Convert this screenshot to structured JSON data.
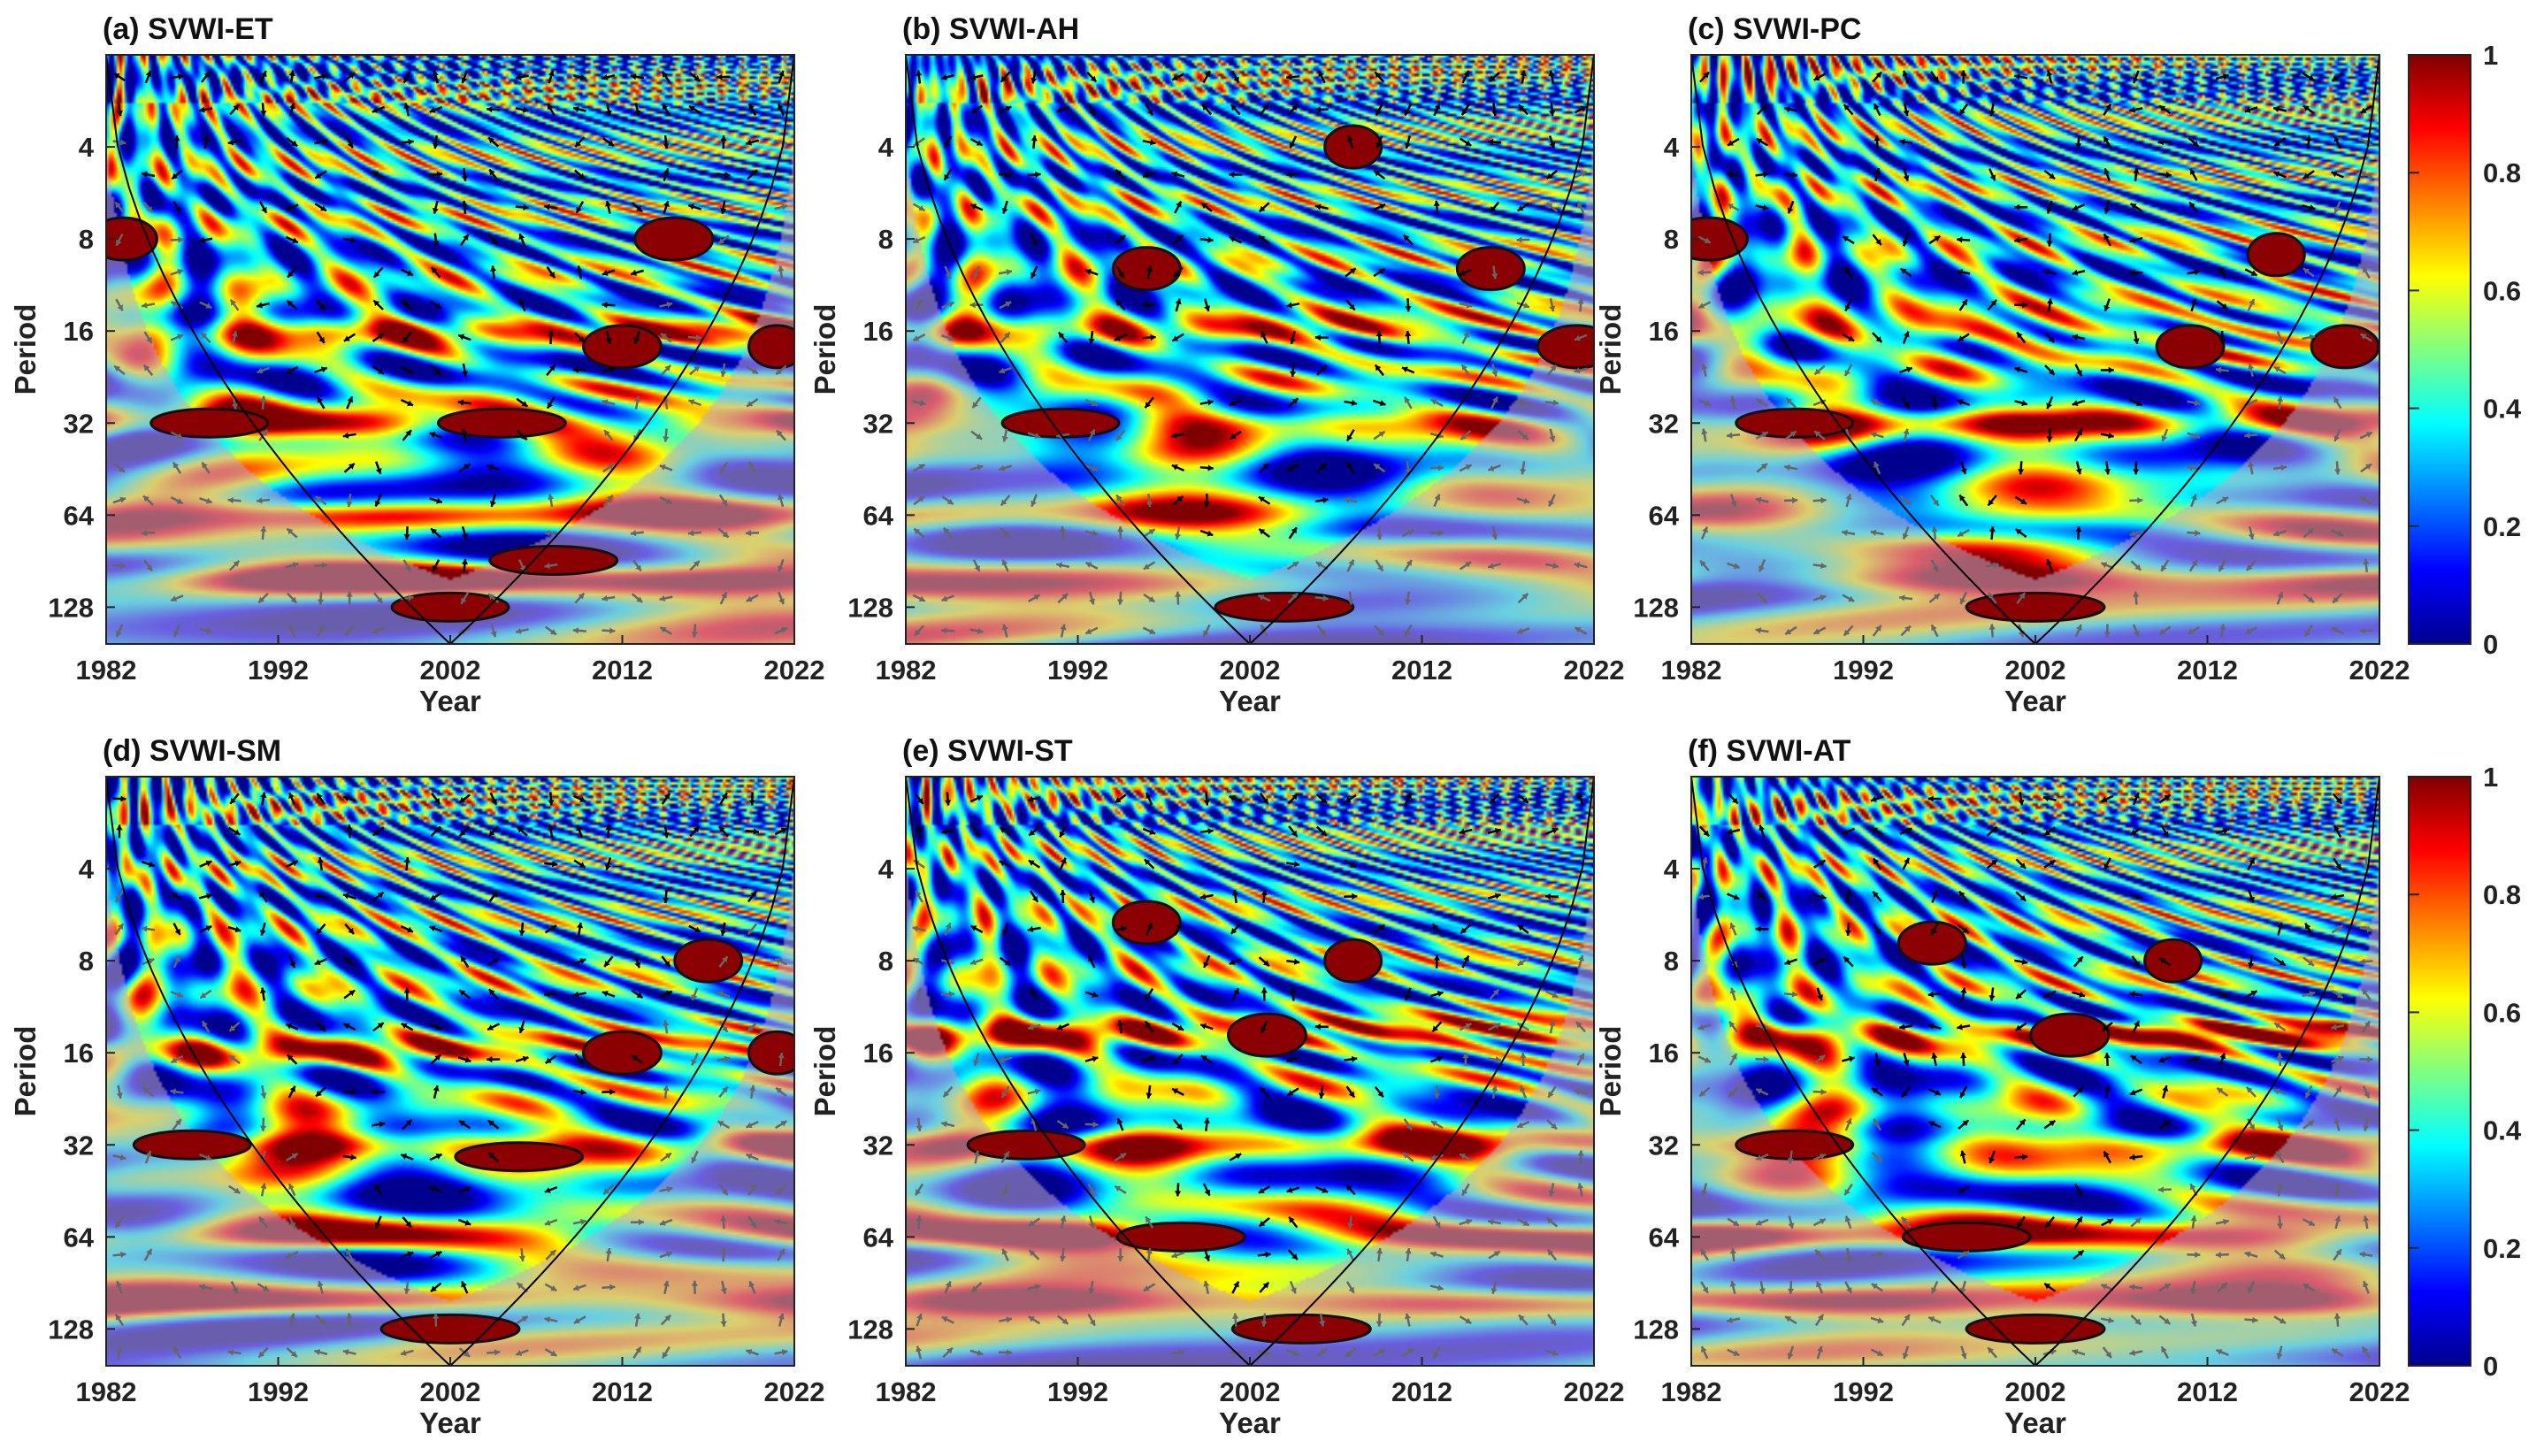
{
  "figure": {
    "colorbar_stops": [
      "#00008f",
      "#0000ff",
      "#0080ff",
      "#00ffff",
      "#80ff80",
      "#ffff00",
      "#ff8000",
      "#ff0000",
      "#800000"
    ]
  },
  "chart_data": [
    {
      "type": "heatmap",
      "title": "(a) SVWI-ET",
      "xlabel": "Year",
      "ylabel": "Period",
      "xticks": [
        "1982",
        "1992",
        "2002",
        "2012",
        "2022"
      ],
      "yticks": [
        "4",
        "8",
        "16",
        "32",
        "64",
        "128"
      ],
      "xlim": [
        1982,
        2022
      ],
      "ylim_log2": [
        1,
        7.4
      ],
      "colorbar": {
        "range": [
          0,
          1
        ],
        "ticks": [
          "0",
          "0.2",
          "0.4",
          "0.6",
          "0.8",
          "1"
        ]
      },
      "significant_regions": [
        {
          "year": 1988,
          "period": 32
        },
        {
          "year": 2005,
          "period": 32
        },
        {
          "year": 2012,
          "period": 18
        },
        {
          "year": 2021,
          "period": 18
        },
        {
          "year": 1983,
          "period": 8
        },
        {
          "year": 2015,
          "period": 8
        },
        {
          "year": 2002,
          "period": 128
        },
        {
          "year": 2008,
          "period": 90
        }
      ],
      "high_power_bands": [
        {
          "period": 32,
          "strength": 0.8
        },
        {
          "period": 64,
          "strength": 0.7
        },
        {
          "period": 105,
          "strength": 0.9
        },
        {
          "period": 16,
          "strength": 0.5
        }
      ]
    },
    {
      "type": "heatmap",
      "title": "(b) SVWI-AH",
      "xlabel": "Year",
      "ylabel": "Period",
      "xticks": [
        "1982",
        "1992",
        "2002",
        "2012",
        "2022"
      ],
      "yticks": [
        "4",
        "8",
        "16",
        "32",
        "64",
        "128"
      ],
      "xlim": [
        1982,
        2022
      ],
      "ylim_log2": [
        1,
        7.4
      ],
      "colorbar": {
        "range": [
          0,
          1
        ],
        "ticks": [
          "0",
          "0.2",
          "0.4",
          "0.6",
          "0.8",
          "1"
        ]
      },
      "significant_regions": [
        {
          "year": 1991,
          "period": 32
        },
        {
          "year": 1996,
          "period": 10
        },
        {
          "year": 2021,
          "period": 18
        },
        {
          "year": 2008,
          "period": 4
        },
        {
          "year": 2016,
          "period": 10
        },
        {
          "year": 2004,
          "period": 128
        }
      ],
      "high_power_bands": [
        {
          "period": 32,
          "strength": 0.5
        },
        {
          "period": 64,
          "strength": 0.4
        },
        {
          "period": 110,
          "strength": 0.6
        },
        {
          "period": 16,
          "strength": 0.4
        }
      ]
    },
    {
      "type": "heatmap",
      "title": "(c) SVWI-PC",
      "xlabel": "Year",
      "ylabel": "Period",
      "xticks": [
        "1982",
        "1992",
        "2002",
        "2012",
        "2022"
      ],
      "yticks": [
        "4",
        "8",
        "16",
        "32",
        "64",
        "128"
      ],
      "xlim": [
        1982,
        2022
      ],
      "ylim_log2": [
        1,
        7.4
      ],
      "colorbar": {
        "range": [
          0,
          1
        ],
        "ticks": [
          "0",
          "0.2",
          "0.4",
          "0.6",
          "0.8",
          "1"
        ]
      },
      "significant_regions": [
        {
          "year": 1988,
          "period": 32
        },
        {
          "year": 2011,
          "period": 18
        },
        {
          "year": 1983,
          "period": 8
        },
        {
          "year": 2016,
          "period": 9
        },
        {
          "year": 2020,
          "period": 18
        },
        {
          "year": 2002,
          "period": 128
        }
      ],
      "high_power_bands": [
        {
          "period": 32,
          "strength": 0.6
        },
        {
          "period": 64,
          "strength": 0.5
        },
        {
          "period": 105,
          "strength": 0.85
        },
        {
          "period": 16,
          "strength": 0.45
        }
      ]
    },
    {
      "type": "heatmap",
      "title": "(d) SVWI-SM",
      "xlabel": "Year",
      "ylabel": "Period",
      "xticks": [
        "1982",
        "1992",
        "2002",
        "2012",
        "2022"
      ],
      "yticks": [
        "4",
        "8",
        "16",
        "32",
        "64",
        "128"
      ],
      "xlim": [
        1982,
        2022
      ],
      "ylim_log2": [
        1,
        7.4
      ],
      "colorbar": {
        "range": [
          0,
          1
        ],
        "ticks": [
          "0",
          "0.2",
          "0.4",
          "0.6",
          "0.8",
          "1"
        ]
      },
      "significant_regions": [
        {
          "year": 1987,
          "period": 32
        },
        {
          "year": 2006,
          "period": 35
        },
        {
          "year": 2012,
          "period": 16
        },
        {
          "year": 2021,
          "period": 16
        },
        {
          "year": 2017,
          "period": 8
        },
        {
          "year": 2002,
          "period": 128
        }
      ],
      "high_power_bands": [
        {
          "period": 32,
          "strength": 0.7
        },
        {
          "period": 64,
          "strength": 0.6
        },
        {
          "period": 105,
          "strength": 0.9
        },
        {
          "period": 16,
          "strength": 0.5
        }
      ]
    },
    {
      "type": "heatmap",
      "title": "(e) SVWI-ST",
      "xlabel": "Year",
      "ylabel": "Period",
      "xticks": [
        "1982",
        "1992",
        "2002",
        "2012",
        "2022"
      ],
      "yticks": [
        "4",
        "8",
        "16",
        "32",
        "64",
        "128"
      ],
      "xlim": [
        1982,
        2022
      ],
      "ylim_log2": [
        1,
        7.4
      ],
      "colorbar": {
        "range": [
          0,
          1
        ],
        "ticks": [
          "0",
          "0.2",
          "0.4",
          "0.6",
          "0.8",
          "1"
        ]
      },
      "significant_regions": [
        {
          "year": 1989,
          "period": 32
        },
        {
          "year": 1998,
          "period": 64
        },
        {
          "year": 2003,
          "period": 14
        },
        {
          "year": 2008,
          "period": 8
        },
        {
          "year": 1996,
          "period": 6
        },
        {
          "year": 2005,
          "period": 128
        }
      ],
      "high_power_bands": [
        {
          "period": 32,
          "strength": 0.6
        },
        {
          "period": 64,
          "strength": 0.85
        },
        {
          "period": 105,
          "strength": 0.9
        },
        {
          "period": 14,
          "strength": 0.6
        }
      ]
    },
    {
      "type": "heatmap",
      "title": "(f) SVWI-AT",
      "xlabel": "Year",
      "ylabel": "Period",
      "xticks": [
        "1982",
        "1992",
        "2002",
        "2012",
        "2022"
      ],
      "yticks": [
        "4",
        "8",
        "16",
        "32",
        "64",
        "128"
      ],
      "xlim": [
        1982,
        2022
      ],
      "ylim_log2": [
        1,
        7.4
      ],
      "colorbar": {
        "range": [
          0,
          1
        ],
        "ticks": [
          "0",
          "0.2",
          "0.4",
          "0.6",
          "0.8",
          "1"
        ]
      },
      "significant_regions": [
        {
          "year": 1988,
          "period": 32
        },
        {
          "year": 1998,
          "period": 64
        },
        {
          "year": 2004,
          "period": 14
        },
        {
          "year": 2010,
          "period": 8
        },
        {
          "year": 1996,
          "period": 7
        },
        {
          "year": 2002,
          "period": 128
        }
      ],
      "high_power_bands": [
        {
          "period": 32,
          "strength": 0.6
        },
        {
          "period": 64,
          "strength": 0.85
        },
        {
          "period": 105,
          "strength": 0.9
        },
        {
          "period": 14,
          "strength": 0.6
        }
      ]
    }
  ]
}
